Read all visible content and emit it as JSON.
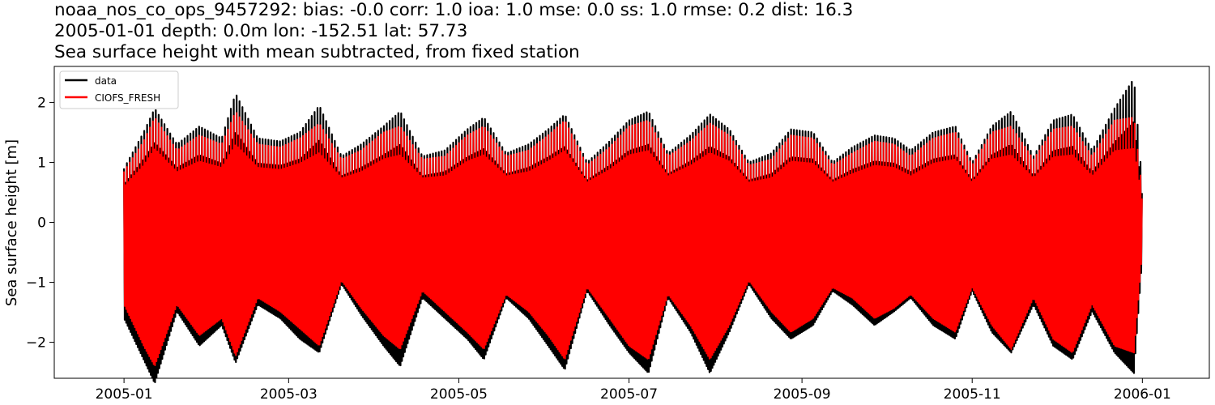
{
  "title": {
    "line1": "noaa_nos_co_ops_9457292: bias: -0.0  corr: 1.0  ioa: 1.0  mse: 0.0  ss: 1.0  rmse: 0.2  dist: 16.3",
    "line2": "2005-01-01 depth: 0.0m lon: -152.51 lat: 57.73",
    "line3": "Sea surface height with mean subtracted, from fixed station"
  },
  "chart_data": {
    "type": "line",
    "xlabel": "",
    "ylabel": "Sea surface height [m]",
    "xlim": [
      "2004-12-07",
      "2006-01-25"
    ],
    "ylim": [
      -2.6,
      2.6
    ],
    "xticks": [
      "2005-01-01",
      "2005-03-01",
      "2005-05-01",
      "2005-07-01",
      "2005-09-01",
      "2005-11-01",
      "2006-01-01"
    ],
    "xtick_labels": [
      "2005-01",
      "2005-03",
      "2005-05",
      "2005-07",
      "2005-09",
      "2005-11",
      "2006-01"
    ],
    "yticks": [
      -2,
      -1,
      0,
      1,
      2
    ],
    "ytick_labels": [
      "−2",
      "−1",
      "0",
      "1",
      "2"
    ],
    "legend_position": "top-left",
    "grid": false,
    "series": [
      {
        "name": "data",
        "color": "#000000",
        "x_start": "2005-01-01",
        "x_end": "2006-01-01",
        "note_envelope": "daily upper/lower extremes approximated",
        "envelope_dates": [
          "2005-01-01",
          "2005-01-08",
          "2005-01-12",
          "2005-01-20",
          "2005-01-28",
          "2005-02-05",
          "2005-02-10",
          "2005-02-18",
          "2005-02-26",
          "2005-03-05",
          "2005-03-12",
          "2005-03-20",
          "2005-03-27",
          "2005-04-04",
          "2005-04-10",
          "2005-04-18",
          "2005-04-26",
          "2005-05-04",
          "2005-05-10",
          "2005-05-18",
          "2005-05-26",
          "2005-06-02",
          "2005-06-08",
          "2005-06-16",
          "2005-06-24",
          "2005-07-01",
          "2005-07-08",
          "2005-07-15",
          "2005-07-23",
          "2005-07-30",
          "2005-08-06",
          "2005-08-13",
          "2005-08-21",
          "2005-08-28",
          "2005-09-05",
          "2005-09-12",
          "2005-09-19",
          "2005-09-27",
          "2005-10-04",
          "2005-10-10",
          "2005-10-18",
          "2005-10-26",
          "2005-11-01",
          "2005-11-08",
          "2005-11-15",
          "2005-11-23",
          "2005-11-30",
          "2005-12-07",
          "2005-12-14",
          "2005-12-22",
          "2005-12-29",
          "2006-01-01"
        ],
        "upper": [
          0.9,
          1.5,
          1.9,
          1.3,
          1.6,
          1.4,
          2.15,
          1.4,
          1.35,
          1.5,
          1.95,
          1.1,
          1.3,
          1.6,
          1.85,
          1.1,
          1.2,
          1.55,
          1.75,
          1.15,
          1.3,
          1.55,
          1.8,
          1.0,
          1.35,
          1.7,
          1.85,
          1.15,
          1.45,
          1.8,
          1.55,
          1.0,
          1.15,
          1.55,
          1.5,
          1.0,
          1.25,
          1.45,
          1.4,
          1.2,
          1.5,
          1.6,
          1.0,
          1.6,
          1.85,
          1.1,
          1.7,
          1.8,
          1.2,
          1.9,
          2.4,
          0.6
        ],
        "lower": [
          -1.4,
          -2.0,
          -2.35,
          -1.3,
          -1.8,
          -1.5,
          -2.05,
          -1.2,
          -1.4,
          -1.7,
          -1.9,
          -0.9,
          -1.35,
          -1.8,
          -2.1,
          -1.1,
          -1.4,
          -1.7,
          -2.0,
          -1.1,
          -1.4,
          -1.8,
          -2.15,
          -1.0,
          -1.5,
          -1.9,
          -2.2,
          -1.1,
          -1.6,
          -2.2,
          -1.6,
          -0.9,
          -1.4,
          -1.7,
          -1.5,
          -1.0,
          -1.2,
          -1.5,
          -1.3,
          -1.1,
          -1.5,
          -1.7,
          -1.0,
          -1.6,
          -1.9,
          -1.2,
          -1.8,
          -2.0,
          -1.3,
          -1.9,
          -2.2,
          -0.5
        ]
      },
      {
        "name": "CIOFS_FRESH",
        "color": "#ff0000",
        "x_start": "2005-01-01",
        "x_end": "2006-01-01",
        "envelope_dates": [
          "2005-01-01",
          "2005-01-08",
          "2005-01-12",
          "2005-01-20",
          "2005-01-28",
          "2005-02-05",
          "2005-02-10",
          "2005-02-18",
          "2005-02-26",
          "2005-03-05",
          "2005-03-12",
          "2005-03-20",
          "2005-03-27",
          "2005-04-04",
          "2005-04-10",
          "2005-04-18",
          "2005-04-26",
          "2005-05-04",
          "2005-05-10",
          "2005-05-18",
          "2005-05-26",
          "2005-06-02",
          "2005-06-08",
          "2005-06-16",
          "2005-06-24",
          "2005-07-01",
          "2005-07-08",
          "2005-07-15",
          "2005-07-23",
          "2005-07-30",
          "2005-08-06",
          "2005-08-13",
          "2005-08-21",
          "2005-08-28",
          "2005-09-05",
          "2005-09-12",
          "2005-09-19",
          "2005-09-27",
          "2005-10-04",
          "2005-10-10",
          "2005-10-18",
          "2005-10-26",
          "2005-11-01",
          "2005-11-08",
          "2005-11-15",
          "2005-11-23",
          "2005-11-30",
          "2005-12-07",
          "2005-12-14",
          "2005-12-22",
          "2005-12-29",
          "2006-01-01"
        ],
        "upper": [
          0.85,
          1.35,
          1.75,
          1.2,
          1.45,
          1.3,
          1.85,
          1.3,
          1.25,
          1.4,
          1.65,
          1.05,
          1.2,
          1.5,
          1.6,
          1.05,
          1.1,
          1.45,
          1.6,
          1.1,
          1.2,
          1.45,
          1.7,
          0.95,
          1.25,
          1.6,
          1.7,
          1.1,
          1.35,
          1.65,
          1.45,
          0.95,
          1.05,
          1.45,
          1.4,
          0.95,
          1.15,
          1.35,
          1.3,
          1.1,
          1.4,
          1.5,
          0.95,
          1.5,
          1.6,
          1.05,
          1.55,
          1.6,
          1.1,
          1.7,
          1.75,
          0.5
        ],
        "lower": [
          -1.2,
          -1.8,
          -2.1,
          -1.2,
          -1.65,
          -1.4,
          -1.95,
          -1.1,
          -1.3,
          -1.55,
          -1.8,
          -0.85,
          -1.25,
          -1.65,
          -1.85,
          -1.0,
          -1.3,
          -1.6,
          -1.85,
          -1.05,
          -1.3,
          -1.65,
          -2.0,
          -0.95,
          -1.4,
          -1.8,
          -2.0,
          -1.05,
          -1.5,
          -2.0,
          -1.5,
          -0.85,
          -1.3,
          -1.6,
          -1.4,
          -0.95,
          -1.1,
          -1.4,
          -1.25,
          -1.05,
          -1.4,
          -1.6,
          -0.95,
          -1.5,
          -1.85,
          -1.1,
          -1.7,
          -1.9,
          -1.2,
          -1.8,
          -1.9,
          -0.4
        ]
      }
    ]
  }
}
